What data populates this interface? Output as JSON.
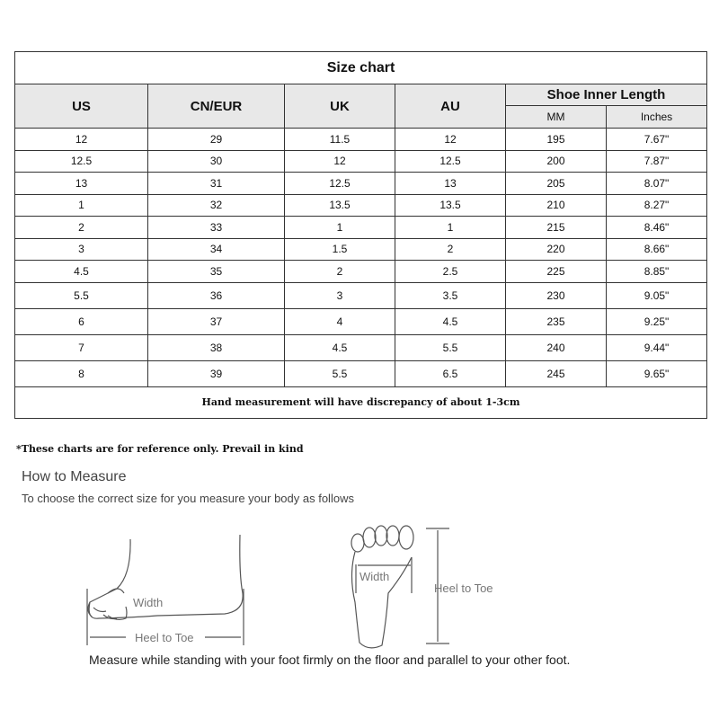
{
  "title": "Size chart",
  "headers": {
    "us": "US",
    "cn_eur": "CN/EUR",
    "uk": "UK",
    "au": "AU",
    "inner_length": "Shoe Inner Length",
    "mm": "MM",
    "inches": "Inches"
  },
  "rows": [
    [
      "12",
      "29",
      "11.5",
      "12",
      "195",
      "7.67\""
    ],
    [
      "12.5",
      "30",
      "12",
      "12.5",
      "200",
      "7.87\""
    ],
    [
      "13",
      "31",
      "12.5",
      "13",
      "205",
      "8.07\""
    ],
    [
      "1",
      "32",
      "13.5",
      "13.5",
      "210",
      "8.27\""
    ],
    [
      "2",
      "33",
      "1",
      "1",
      "215",
      "8.46\""
    ],
    [
      "3",
      "34",
      "1.5",
      "2",
      "220",
      "8.66\""
    ],
    [
      "4.5",
      "35",
      "2",
      "2.5",
      "225",
      "8.85\""
    ],
    [
      "5.5",
      "36",
      "3",
      "3.5",
      "230",
      "9.05\""
    ],
    [
      "6",
      "37",
      "4",
      "4.5",
      "235",
      "9.25\""
    ],
    [
      "7",
      "38",
      "4.5",
      "5.5",
      "240",
      "9.44\""
    ],
    [
      "8",
      "39",
      "5.5",
      "6.5",
      "245",
      "9.65\""
    ]
  ],
  "footer": "Hand measurement will have discrepancy of about 1-3cm",
  "note": "*These charts are for reference only. Prevail in kind",
  "how_to": {
    "heading": "How to Measure",
    "subtitle": "To choose the correct size for you measure your body as follows",
    "width_label": "Width",
    "heel_to_toe_label": "Heel to Toe",
    "caption": "Measure while standing with your foot firmly on the floor and parallel to your other foot."
  }
}
